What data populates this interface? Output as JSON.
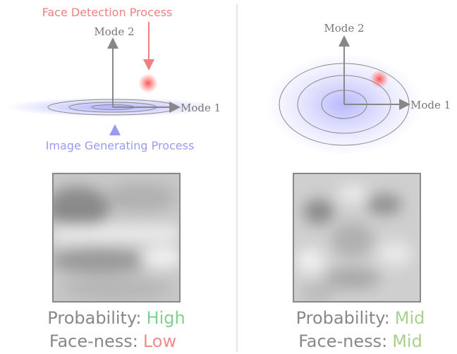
{
  "panels": [
    {
      "annotation_top": "Face Detection Process",
      "axis_y": "Mode 2",
      "axis_x": "Mode 1",
      "annotation_bottom": "Image Generating Process",
      "probability_label": "Probability:",
      "probability_value": "High",
      "faceness_label": "Face-ness:",
      "faceness_value": "Low"
    },
    {
      "axis_y": "Mode 2",
      "axis_x": "Mode 1",
      "probability_label": "Probability:",
      "probability_value": "Mid",
      "faceness_label": "Face-ness:",
      "faceness_value": "Mid"
    }
  ]
}
